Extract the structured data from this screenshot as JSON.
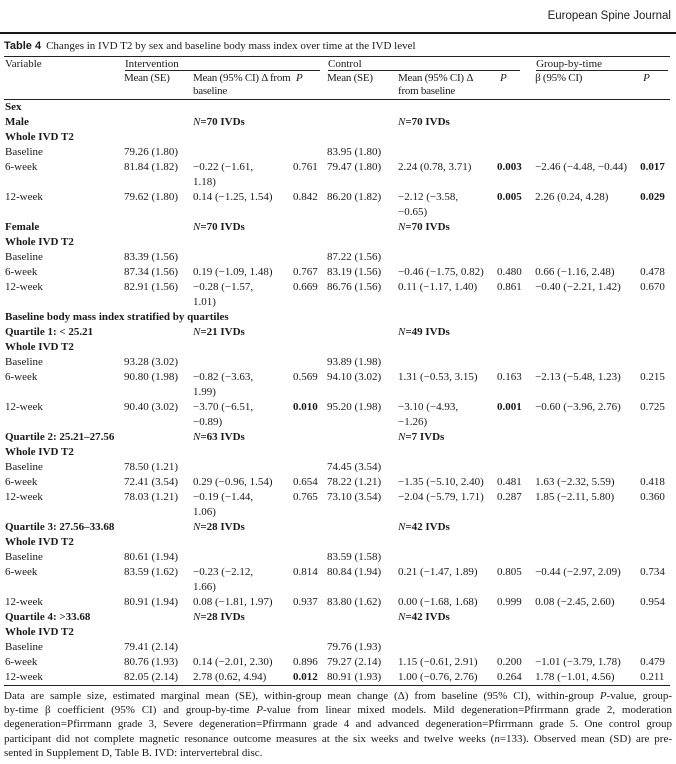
{
  "journal": "European Spine Journal",
  "table": {
    "label": "Table 4",
    "caption": "Changes in IVD T2 by sex and baseline body mass index over time at the IVD level",
    "header": {
      "variable": "Variable",
      "groups": [
        "Intervention",
        "Control",
        "Group-by-time"
      ],
      "subs": [
        "Mean (SE)",
        "Mean (95% CI) Δ from\nbaseline",
        "P",
        "Mean (SE)",
        "Mean (95% CI) Δ\nfrom baseline",
        "P",
        "β (95% CI)",
        "P"
      ]
    },
    "rows": [
      {
        "t": "s",
        "c": [
          "Sex"
        ]
      },
      {
        "t": "g",
        "c": [
          "Male",
          "",
          "N=70 IVDs",
          "",
          "",
          "N=70 IVDs",
          "",
          "",
          ""
        ]
      },
      {
        "t": "s",
        "c": [
          "Whole IVD T2"
        ]
      },
      {
        "t": "d",
        "c": [
          "Baseline",
          "79.26 (1.80)",
          "",
          "",
          "83.95 (1.80)",
          "",
          "",
          "",
          ""
        ]
      },
      {
        "t": "d",
        "c": [
          "6-week",
          "81.84 (1.82)",
          "−0.22 (−1.61,\n1.18)",
          "0.761",
          "79.47 (1.80)",
          "2.24 (0.78, 3.71)",
          "0.003",
          "−2.46 (−4.48, −0.44)",
          "0.017"
        ]
      },
      {
        "t": "d",
        "c": [
          "12-week",
          "79.62 (1.80)",
          "0.14 (−1.25, 1.54)",
          "0.842",
          "86.20 (1.82)",
          "−2.12 (−3.58,\n−0.65)",
          "0.005",
          "2.26 (0.24, 4.28)",
          "0.029"
        ]
      },
      {
        "t": "g",
        "c": [
          "Female",
          "",
          "N=70 IVDs",
          "",
          "",
          "N=70 IVDs",
          "",
          "",
          ""
        ]
      },
      {
        "t": "s",
        "c": [
          "Whole IVD T2"
        ]
      },
      {
        "t": "d",
        "c": [
          "Baseline",
          "83.39 (1.56)",
          "",
          "",
          "87.22 (1.56)",
          "",
          "",
          "",
          ""
        ]
      },
      {
        "t": "d",
        "c": [
          "6-week",
          "87.34 (1.56)",
          "0.19 (−1.09, 1.48)",
          "0.767",
          "83.19 (1.56)",
          "−0.46 (−1.75, 0.82)",
          "0.480",
          "0.66 (−1.16, 2.48)",
          "0.478"
        ]
      },
      {
        "t": "d",
        "c": [
          "12-week",
          "82.91 (1.56)",
          "−0.28 (−1.57,\n1.01)",
          "0.669",
          "86.76 (1.56)",
          "0.11 (−1.17, 1.40)",
          "0.861",
          "−0.40 (−2.21, 1.42)",
          "0.670"
        ]
      },
      {
        "t": "s",
        "c": [
          "Baseline body mass index stratified by quartiles"
        ]
      },
      {
        "t": "g",
        "c": [
          "Quartile 1: < 25.21",
          "",
          "N=21 IVDs",
          "",
          "",
          "N=49 IVDs",
          "",
          "",
          ""
        ]
      },
      {
        "t": "s",
        "c": [
          "Whole IVD T2"
        ]
      },
      {
        "t": "d",
        "c": [
          "Baseline",
          "93.28 (3.02)",
          "",
          "",
          "93.89 (1.98)",
          "",
          "",
          "",
          ""
        ]
      },
      {
        "t": "d",
        "c": [
          "6-week",
          "90.80 (1.98)",
          "−0.82 (−3.63,\n1.99)",
          "0.569",
          "94.10 (3.02)",
          "1.31 (−0.53, 3.15)",
          "0.163",
          "−2.13 (−5.48, 1.23)",
          "0.215"
        ]
      },
      {
        "t": "d",
        "c": [
          "12-week",
          "90.40 (3.02)",
          "−3.70 (−6.51,\n−0.89)",
          "0.010",
          "95.20 (1.98)",
          "−3.10 (−4.93,\n−1.26)",
          "0.001",
          "−0.60 (−3.96, 2.76)",
          "0.725"
        ]
      },
      {
        "t": "g",
        "c": [
          "Quartile 2: 25.21–27.56",
          "",
          "N=63 IVDs",
          "",
          "",
          "N=7 IVDs",
          "",
          "",
          ""
        ]
      },
      {
        "t": "s",
        "c": [
          "Whole IVD T2"
        ]
      },
      {
        "t": "d",
        "c": [
          "Baseline",
          "78.50 (1.21)",
          "",
          "",
          "74.45 (3.54)",
          "",
          "",
          "",
          ""
        ]
      },
      {
        "t": "d",
        "c": [
          "6-week",
          "72.41 (3.54)",
          "0.29 (−0.96, 1.54)",
          "0.654",
          "78.22 (1.21)",
          "−1.35 (−5.10, 2.40)",
          "0.481",
          "1.63 (−2.32, 5.59)",
          "0.418"
        ]
      },
      {
        "t": "d",
        "c": [
          "12-week",
          "78.03 (1.21)",
          "−0.19 (−1.44,\n1.06)",
          "0.765",
          "73.10 (3.54)",
          "−2.04 (−5.79, 1.71)",
          "0.287",
          "1.85 (−2.11, 5.80)",
          "0.360"
        ]
      },
      {
        "t": "g",
        "c": [
          "Quartile 3: 27.56–33.68",
          "",
          "N=28 IVDs",
          "",
          "",
          "N=42 IVDs",
          "",
          "",
          ""
        ]
      },
      {
        "t": "s",
        "c": [
          "Whole IVD T2"
        ]
      },
      {
        "t": "d",
        "c": [
          "Baseline",
          "80.61 (1.94)",
          "",
          "",
          "83.59 (1.58)",
          "",
          "",
          "",
          ""
        ]
      },
      {
        "t": "d",
        "c": [
          "6-week",
          "83.59 (1.62)",
          "−0.23 (−2.12,\n1.66)",
          "0.814",
          "80.84 (1.94)",
          "0.21 (−1.47, 1.89)",
          "0.805",
          "−0.44 (−2.97, 2.09)",
          "0.734"
        ]
      },
      {
        "t": "d",
        "c": [
          "12-week",
          "80.91 (1.94)",
          "0.08 (−1.81, 1.97)",
          "0.937",
          "83.80 (1.62)",
          "0.00 (−1.68, 1.68)",
          "0.999",
          "0.08 (−2.45, 2.60)",
          "0.954"
        ]
      },
      {
        "t": "g",
        "c": [
          "Quartile 4: >33.68",
          "",
          "N=28 IVDs",
          "",
          "",
          "N=42 IVDs",
          "",
          "",
          ""
        ]
      },
      {
        "t": "s",
        "c": [
          "Whole IVD T2"
        ]
      },
      {
        "t": "d",
        "c": [
          "Baseline",
          "79.41 (2.14)",
          "",
          "",
          "79.76 (1.93)",
          "",
          "",
          "",
          ""
        ]
      },
      {
        "t": "d",
        "c": [
          "6-week",
          "80.76 (1.93)",
          "0.14 (−2.01, 2.30)",
          "0.896",
          "79.27 (2.14)",
          "1.15 (−0.61, 2.91)",
          "0.200",
          "−1.01 (−3.79, 1.78)",
          "0.479"
        ]
      },
      {
        "t": "d",
        "c": [
          "12-week",
          "82.05 (2.14)",
          "2.78 (0.62, 4.94)",
          "0.012",
          "80.91 (1.93)",
          "1.00 (−0.76, 2.76)",
          "0.264",
          "1.78 (−1.01, 4.56)",
          "0.211"
        ]
      }
    ]
  },
  "footnote": {
    "lines": [
      "Data are sample size, estimated marginal mean (SE), within-group mean change (Δ) from baseline (95% CI), within-group P-value, group-",
      "by-time β coefficient (95% CI) and group-by-time P-value from linear mixed models. Mild degeneration=Pfirrmann grade 2, moderation",
      "degeneration=Pfirrmann grade 3, Severe degeneration=Pfirrmann grade 4 and advanced degeneration=Pfirrmann grade 5. One control group",
      "participant did not complete magnetic resonance outcome measures at the six weeks and twelve weeks (n=133). Observed mean (SD) are pre-",
      "sented in Supplement D, Table B. IVD: intervertebral disc."
    ]
  }
}
